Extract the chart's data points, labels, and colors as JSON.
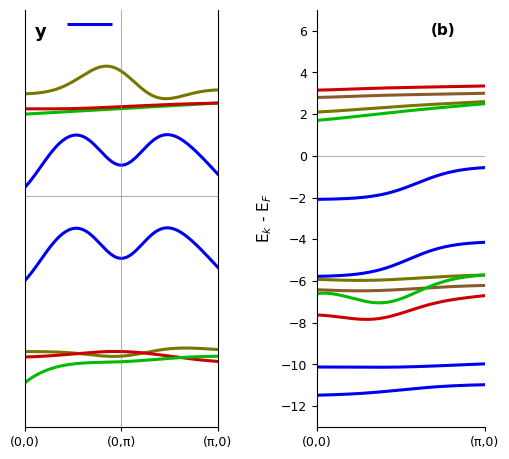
{
  "colors": {
    "blue": "#0000EE",
    "green": "#00BB00",
    "red": "#CC0000",
    "olive": "#777700",
    "brown": "#8B5A2B"
  },
  "left_ylim": [
    -5.2,
    4.2
  ],
  "right_ylim": [
    -13.0,
    7.0
  ],
  "right_yticks": [
    6,
    4,
    2,
    0,
    -2,
    -4,
    -6,
    -8,
    -10,
    -12
  ],
  "ylabel": "E$_k$ - E$_F$",
  "xtick_left": [
    "(0,0)",
    "(0,π)",
    "(π,0)"
  ],
  "xtick_right": [
    "(0,0)",
    "(π,0)"
  ],
  "panel_label_right": "(b)"
}
